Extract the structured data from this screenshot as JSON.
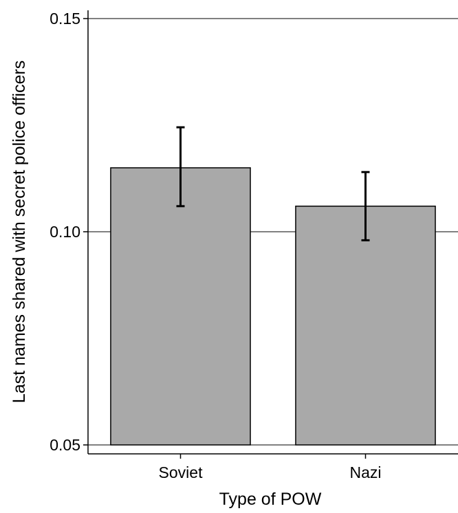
{
  "chart_data": {
    "type": "bar",
    "title": "",
    "xlabel": "Type of POW",
    "ylabel": "Last names shared with secret police officers",
    "categories": [
      "Soviet",
      "Nazi"
    ],
    "values": [
      0.115,
      0.106
    ],
    "error_bars": [
      {
        "lower": 0.106,
        "upper": 0.1245
      },
      {
        "lower": 0.098,
        "upper": 0.114
      }
    ],
    "ylim": [
      0.05,
      0.15
    ],
    "yticks": [
      0.05,
      0.1,
      0.15
    ],
    "ytick_labels": [
      "0.05",
      "0.10",
      "0.15"
    ],
    "grid": "horizontal major gridlines at y ticks",
    "legend": "none",
    "colors": {
      "bar_fill": "#a9a9a9",
      "bar_stroke": "#000000",
      "error_bar": "#000000",
      "grid": "#000000"
    }
  }
}
